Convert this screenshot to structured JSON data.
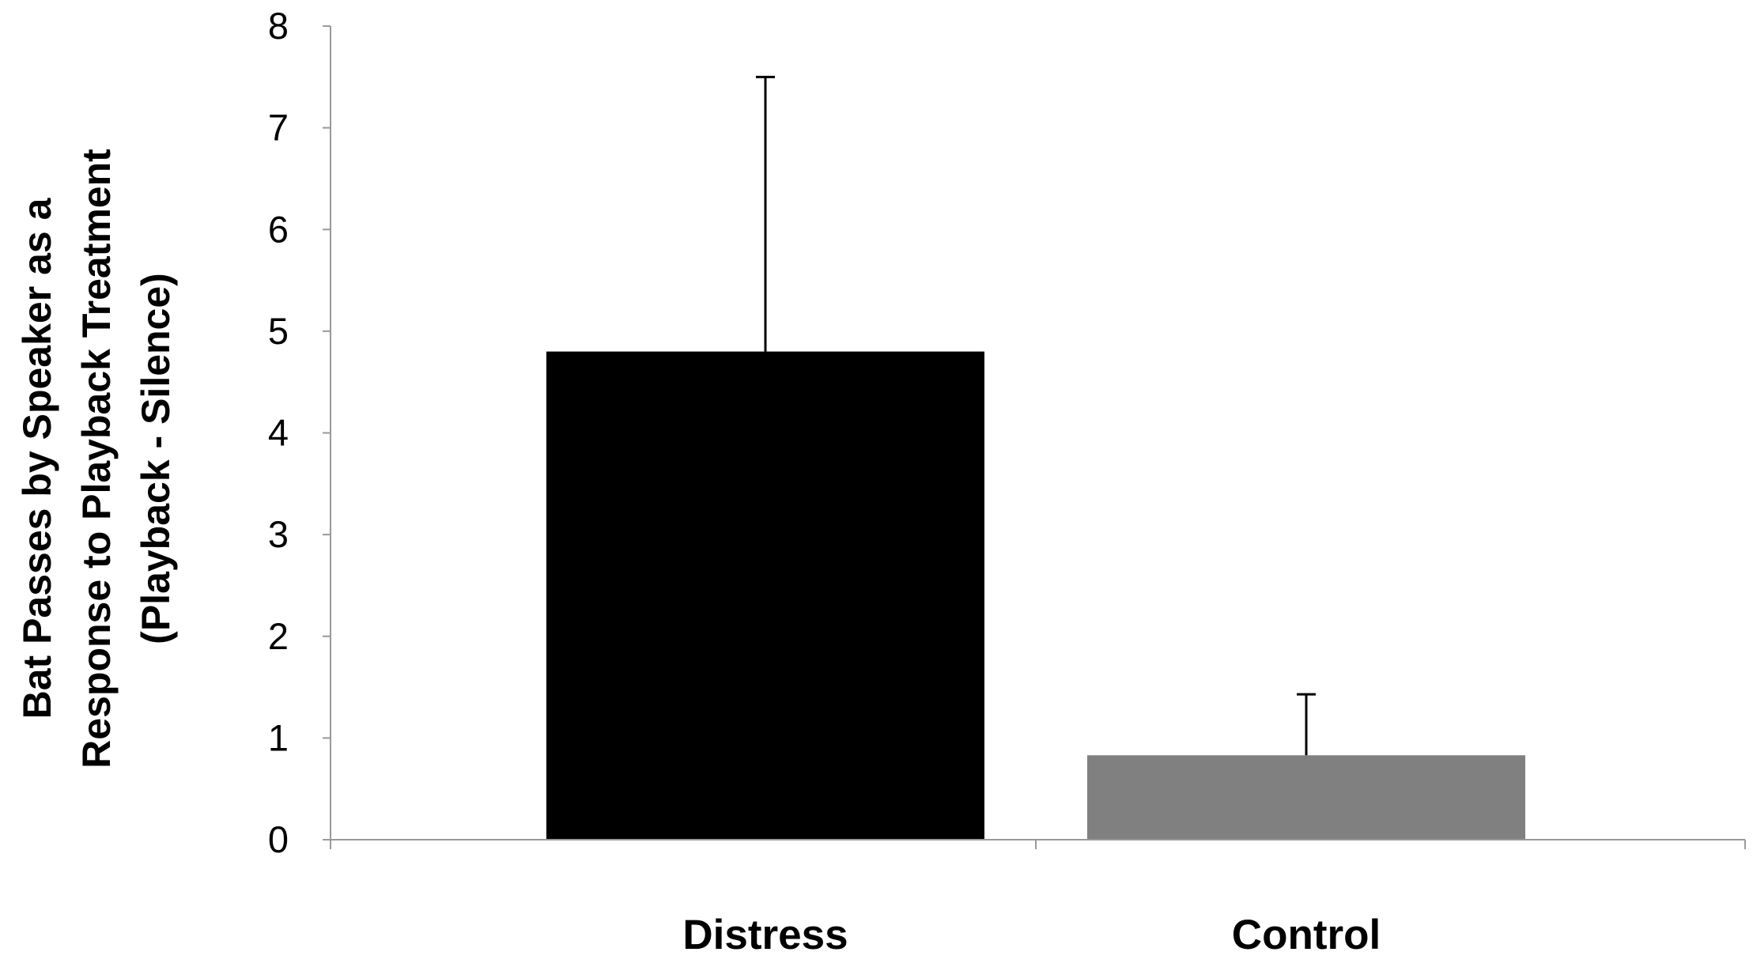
{
  "chart_data": {
    "type": "bar",
    "title": "",
    "xlabel": "",
    "ylabel_lines": [
      "Bat Passes by Speaker as a",
      "Response to Playback Treatment",
      "(Playback - Silence)"
    ],
    "categories": [
      "Distress",
      "Control"
    ],
    "values": [
      4.8,
      0.83
    ],
    "error_upper": [
      2.7,
      0.6
    ],
    "bar_colors": [
      "#000000",
      "#808080"
    ],
    "ylim": [
      0,
      8
    ],
    "yticks": [
      "0",
      "1",
      "2",
      "3",
      "4",
      "5",
      "6",
      "7",
      "8"
    ],
    "grid": false,
    "legend": "none"
  }
}
